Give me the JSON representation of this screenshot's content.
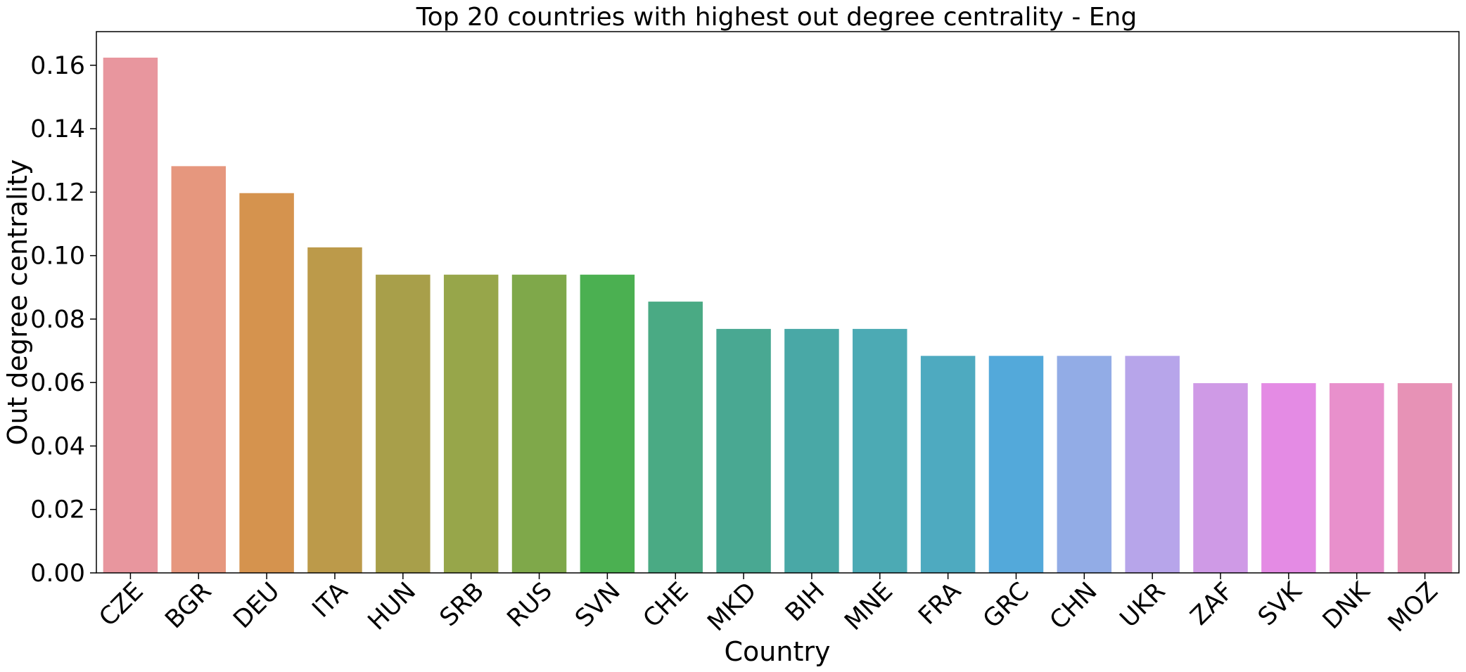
{
  "chart_data": {
    "type": "bar",
    "title": "Top 20 countries with highest out degree centrality - Eng",
    "xlabel": "Country",
    "ylabel": "Out degree centrality",
    "categories": [
      "CZE",
      "BGR",
      "DEU",
      "ITA",
      "HUN",
      "SRB",
      "RUS",
      "SVN",
      "CHE",
      "MKD",
      "BIH",
      "MNE",
      "FRA",
      "GRC",
      "CHN",
      "UKR",
      "ZAF",
      "SVK",
      "DNK",
      "MOZ"
    ],
    "values": [
      0.1624,
      0.1282,
      0.1197,
      0.1026,
      0.094,
      0.094,
      0.094,
      0.094,
      0.0855,
      0.0769,
      0.0769,
      0.0769,
      0.0684,
      0.0684,
      0.0684,
      0.0684,
      0.0598,
      0.0598,
      0.0598,
      0.0598
    ],
    "colors": [
      "#e8969e",
      "#e6977e",
      "#d5934e",
      "#bc9a4a",
      "#a89f4a",
      "#97a64a",
      "#7fa84a",
      "#4bb051",
      "#4aaa84",
      "#49a892",
      "#49a8a6",
      "#4caab4",
      "#4eaac0",
      "#53a9da",
      "#92ace6",
      "#b7a5ea",
      "#cf9ae6",
      "#e48be4",
      "#e890cc",
      "#e792b6"
    ],
    "yticks": [
      "0.00",
      "0.02",
      "0.04",
      "0.06",
      "0.08",
      "0.10",
      "0.12",
      "0.14",
      "0.16"
    ],
    "ylim": [
      0,
      0.1706
    ],
    "grid": false,
    "legend": "none"
  }
}
